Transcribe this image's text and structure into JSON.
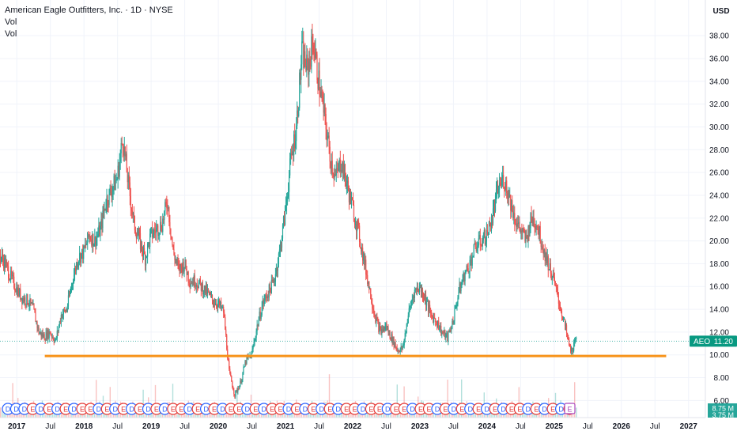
{
  "header": {
    "title": "American Eagle Outfitters, Inc. · 1D · NYSE",
    "indicator_1": "Vol",
    "indicator_2": "Vol"
  },
  "price_axis": {
    "currency": "USD",
    "ticks": [
      "38.00",
      "36.00",
      "34.00",
      "32.00",
      "30.00",
      "28.00",
      "26.00",
      "24.00",
      "22.00",
      "20.00",
      "18.00",
      "16.00",
      "14.00",
      "12.00",
      "10.00",
      "8.00",
      "6.00"
    ]
  },
  "last_price": {
    "symbol": "AEO",
    "value": "11.20",
    "color": "#089981"
  },
  "volume_labels": [
    "8.75 M",
    "3.75 M"
  ],
  "time_axis": {
    "labels": [
      "2017",
      "Jul",
      "2018",
      "Jul",
      "2019",
      "Jul",
      "2020",
      "Jul",
      "2021",
      "Jul",
      "2022",
      "Jul",
      "2023",
      "Jul",
      "2024",
      "Jul",
      "2025",
      "Jul",
      "2026",
      "Jul",
      "2027"
    ]
  },
  "colors": {
    "up": "#26a69a",
    "down": "#ef5350",
    "support_line": "#f7931a",
    "dividend_marker": "#2962ff",
    "earnings_marker": "#e53935",
    "upcoming_earnings": "#ab47bc",
    "grid": "#f0f3fa"
  },
  "chart_data": {
    "type": "line",
    "title": "American Eagle Outfitters, Inc. · 1D · NYSE",
    "ylabel": "USD",
    "ylim": [
      5.5,
      39.5
    ],
    "xlim": [
      "2016-10",
      "2027-04"
    ],
    "grid": true,
    "legend": "top-left",
    "series": [
      {
        "values": [
          [
            "2016-10",
            18.8
          ],
          [
            "2016-11",
            18.0
          ],
          [
            "2016-12",
            16.8
          ],
          [
            "2017-01",
            15.8
          ],
          [
            "2017-02",
            15.0
          ],
          [
            "2017-03",
            14.8
          ],
          [
            "2017-04",
            14.0
          ],
          [
            "2017-05",
            12.0
          ],
          [
            "2017-06",
            11.6
          ],
          [
            "2017-07",
            12.0
          ],
          [
            "2017-08",
            11.2
          ],
          [
            "2017-09",
            13.5
          ],
          [
            "2017-10",
            14.0
          ],
          [
            "2017-11",
            16.5
          ],
          [
            "2017-12",
            18.5
          ],
          [
            "2018-01",
            19.0
          ],
          [
            "2018-02",
            20.5
          ],
          [
            "2018-03",
            20.0
          ],
          [
            "2018-04",
            21.0
          ],
          [
            "2018-05",
            23.5
          ],
          [
            "2018-06",
            24.5
          ],
          [
            "2018-07",
            25.5
          ],
          [
            "2018-08",
            29.0
          ],
          [
            "2018-09",
            25.0
          ],
          [
            "2018-10",
            21.5
          ],
          [
            "2018-11",
            20.0
          ],
          [
            "2018-12",
            18.5
          ],
          [
            "2019-01",
            20.5
          ],
          [
            "2019-02",
            21.0
          ],
          [
            "2019-03",
            21.5
          ],
          [
            "2019-04",
            23.5
          ],
          [
            "2019-05",
            19.0
          ],
          [
            "2019-06",
            17.5
          ],
          [
            "2019-07",
            18.0
          ],
          [
            "2019-08",
            16.5
          ],
          [
            "2019-09",
            16.5
          ],
          [
            "2019-10",
            16.0
          ],
          [
            "2019-11",
            15.5
          ],
          [
            "2019-12",
            14.8
          ],
          [
            "2020-01",
            14.5
          ],
          [
            "2020-02",
            13.8
          ],
          [
            "2020-03",
            8.5
          ],
          [
            "2020-04",
            6.5
          ],
          [
            "2020-05",
            7.5
          ],
          [
            "2020-06",
            9.5
          ],
          [
            "2020-07",
            10.0
          ],
          [
            "2020-08",
            12.5
          ],
          [
            "2020-09",
            14.5
          ],
          [
            "2020-10",
            15.5
          ],
          [
            "2020-11",
            16.5
          ],
          [
            "2020-12",
            19.0
          ],
          [
            "2021-01",
            22.5
          ],
          [
            "2021-02",
            27.0
          ],
          [
            "2021-03",
            30.0
          ],
          [
            "2021-04",
            36.5
          ],
          [
            "2021-05",
            35.0
          ],
          [
            "2021-06",
            37.5
          ],
          [
            "2021-07",
            34.0
          ],
          [
            "2021-08",
            31.0
          ],
          [
            "2021-09",
            27.5
          ],
          [
            "2021-10",
            25.5
          ],
          [
            "2021-11",
            27.0
          ],
          [
            "2021-12",
            25.0
          ],
          [
            "2022-01",
            23.0
          ],
          [
            "2022-02",
            21.0
          ],
          [
            "2022-03",
            18.5
          ],
          [
            "2022-04",
            16.0
          ],
          [
            "2022-05",
            13.5
          ],
          [
            "2022-06",
            12.0
          ],
          [
            "2022-07",
            12.5
          ],
          [
            "2022-08",
            11.5
          ],
          [
            "2022-09",
            10.5
          ],
          [
            "2022-10",
            10.5
          ],
          [
            "2022-11",
            13.5
          ],
          [
            "2022-12",
            15.5
          ],
          [
            "2023-01",
            16.0
          ],
          [
            "2023-02",
            15.0
          ],
          [
            "2023-03",
            13.5
          ],
          [
            "2023-04",
            13.0
          ],
          [
            "2023-05",
            12.0
          ],
          [
            "2023-06",
            11.5
          ],
          [
            "2023-07",
            13.0
          ],
          [
            "2023-08",
            15.5
          ],
          [
            "2023-09",
            17.0
          ],
          [
            "2023-10",
            18.0
          ],
          [
            "2023-11",
            19.5
          ],
          [
            "2023-12",
            20.0
          ],
          [
            "2024-01",
            20.5
          ],
          [
            "2024-02",
            22.0
          ],
          [
            "2024-03",
            24.5
          ],
          [
            "2024-04",
            25.5
          ],
          [
            "2024-05",
            24.0
          ],
          [
            "2024-06",
            22.0
          ],
          [
            "2024-07",
            21.0
          ],
          [
            "2024-08",
            20.0
          ],
          [
            "2024-09",
            22.0
          ],
          [
            "2024-10",
            21.5
          ],
          [
            "2024-11",
            19.5
          ],
          [
            "2024-12",
            18.0
          ],
          [
            "2025-01",
            16.5
          ],
          [
            "2025-02",
            14.5
          ],
          [
            "2025-03",
            12.5
          ],
          [
            "2025-04",
            10.3
          ],
          [
            "2025-05",
            11.2
          ]
        ]
      }
    ],
    "support_level": 9.9,
    "last_value": 11.2
  }
}
